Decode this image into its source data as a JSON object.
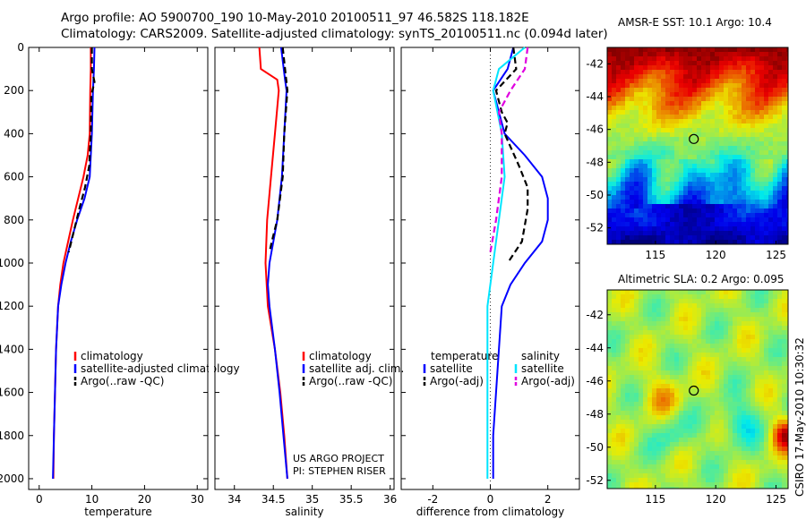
{
  "header": {
    "line1": "Argo profile: AO 5900700_190 10-May-2010 20100511_97 46.582S 118.182E",
    "line2": "Climatology: CARS2009. Satellite-adjusted climatology: synTS_20100511.nc (0.094d later)"
  },
  "credit": {
    "line1": "US ARGO PROJECT",
    "line2": "PI: STEPHEN RISER"
  },
  "stamp": "CSIRO 17-May-2010 10:30:32",
  "colors": {
    "climatology": "#ff0000",
    "satellite": "#0000ff",
    "argo": "#000000",
    "salinity_satellite": "#00e5ff",
    "salinity_argo": "#e000e0"
  },
  "chart_data": [
    {
      "type": "line",
      "xlabel": "temperature",
      "ylabel": "",
      "xlim": [
        -2,
        32
      ],
      "ylim": [
        2050,
        0
      ],
      "xticks": [
        "0",
        "10",
        "20",
        "30"
      ],
      "xtick_values": [
        0,
        10,
        20,
        30
      ],
      "yticks": [
        "0",
        "200",
        "400",
        "600",
        "800",
        "1000",
        "1200",
        "1400",
        "1600",
        "1800",
        "2000"
      ],
      "ytick_values": [
        0,
        200,
        400,
        600,
        800,
        1000,
        1200,
        1400,
        1600,
        1800,
        2000
      ],
      "legend": {
        "placement": "middle-left",
        "entries": [
          "climatology",
          "satellite-adjusted climatology",
          "Argo(..raw -QC)"
        ]
      },
      "series": [
        {
          "name": "climatology",
          "color": "#ff0000",
          "style": "solid",
          "points": [
            [
              9.8,
              0
            ],
            [
              9.8,
              100
            ],
            [
              9.7,
              200
            ],
            [
              9.6,
              400
            ],
            [
              9.2,
              500
            ],
            [
              8.4,
              600
            ],
            [
              7.4,
              700
            ],
            [
              6.4,
              800
            ],
            [
              5.5,
              900
            ],
            [
              4.6,
              1000
            ],
            [
              4.0,
              1100
            ],
            [
              3.6,
              1200
            ],
            [
              3.2,
              1400
            ],
            [
              3.0,
              1600
            ],
            [
              2.8,
              1800
            ],
            [
              2.7,
              2000
            ]
          ]
        },
        {
          "name": "satellite-adjusted climatology",
          "color": "#0000ff",
          "style": "solid",
          "points": [
            [
              10.5,
              0
            ],
            [
              10.4,
              100
            ],
            [
              10.2,
              200
            ],
            [
              10.0,
              400
            ],
            [
              9.8,
              500
            ],
            [
              9.6,
              600
            ],
            [
              8.6,
              700
            ],
            [
              7.2,
              800
            ],
            [
              6.0,
              900
            ],
            [
              5.0,
              1000
            ],
            [
              4.2,
              1100
            ],
            [
              3.6,
              1200
            ],
            [
              3.2,
              1400
            ],
            [
              3.0,
              1600
            ],
            [
              2.8,
              1800
            ],
            [
              2.6,
              2000
            ]
          ]
        },
        {
          "name": "Argo(..raw -QC)",
          "color": "#000000",
          "style": "dashed",
          "points": [
            [
              10.0,
              0
            ],
            [
              10.0,
              100
            ],
            [
              10.5,
              160
            ],
            [
              9.9,
              220
            ],
            [
              9.8,
              400
            ],
            [
              9.5,
              550
            ],
            [
              8.7,
              650
            ],
            [
              7.6,
              750
            ],
            [
              6.6,
              850
            ],
            [
              5.6,
              950
            ]
          ]
        }
      ]
    },
    {
      "type": "line",
      "xlabel": "salinity",
      "ylabel": "",
      "xlim": [
        33.75,
        36.05
      ],
      "ylim": [
        2050,
        0
      ],
      "xticks": [
        "34",
        "34.5",
        "35",
        "35.5",
        "36"
      ],
      "xtick_values": [
        34,
        34.5,
        35,
        35.5,
        36
      ],
      "legend": {
        "placement": "middle-left",
        "entries": [
          "climatology",
          "satellite adj. clim.",
          "Argo(..raw -QC)"
        ]
      },
      "series": [
        {
          "name": "climatology",
          "color": "#ff0000",
          "style": "solid",
          "points": [
            [
              34.32,
              0
            ],
            [
              34.34,
              100
            ],
            [
              34.55,
              150
            ],
            [
              34.57,
              200
            ],
            [
              34.52,
              400
            ],
            [
              34.47,
              600
            ],
            [
              34.42,
              800
            ],
            [
              34.4,
              1000
            ],
            [
              34.43,
              1200
            ],
            [
              34.52,
              1400
            ],
            [
              34.59,
              1600
            ],
            [
              34.64,
              1800
            ],
            [
              34.68,
              2000
            ]
          ]
        },
        {
          "name": "satellite adj. clim.",
          "color": "#0000ff",
          "style": "solid",
          "points": [
            [
              34.6,
              0
            ],
            [
              34.65,
              150
            ],
            [
              34.67,
              200
            ],
            [
              34.64,
              400
            ],
            [
              34.61,
              600
            ],
            [
              34.55,
              800
            ],
            [
              34.45,
              1000
            ],
            [
              34.43,
              1100
            ],
            [
              34.45,
              1200
            ],
            [
              34.52,
              1400
            ],
            [
              34.58,
              1600
            ],
            [
              34.63,
              1800
            ],
            [
              34.68,
              2000
            ]
          ]
        },
        {
          "name": "Argo(..raw -QC)",
          "color": "#000000",
          "style": "dashed",
          "points": [
            [
              34.62,
              0
            ],
            [
              34.65,
              100
            ],
            [
              34.68,
              200
            ],
            [
              34.64,
              400
            ],
            [
              34.62,
              600
            ],
            [
              34.55,
              800
            ],
            [
              34.48,
              900
            ],
            [
              34.45,
              950
            ]
          ]
        }
      ]
    },
    {
      "type": "line",
      "xlabel": "difference from climatology",
      "ylabel": "",
      "xlim": [
        -3.1,
        3.1
      ],
      "ylim": [
        2050,
        0
      ],
      "xticks": [
        "-2",
        "0",
        "2"
      ],
      "xtick_values": [
        -2,
        0,
        2
      ],
      "legend": {
        "placement": "middle",
        "headers": [
          "temperature",
          "salinity"
        ],
        "entries": [
          "satellite",
          "Argo(-adj)",
          "satellite",
          "Argo(-adj)"
        ]
      },
      "series": [
        {
          "name": "temperature satellite",
          "color": "#0000ff",
          "style": "solid",
          "points": [
            [
              0.8,
              0
            ],
            [
              0.6,
              100
            ],
            [
              0.1,
              200
            ],
            [
              0.3,
              300
            ],
            [
              0.5,
              400
            ],
            [
              1.2,
              500
            ],
            [
              1.8,
              600
            ],
            [
              2.0,
              700
            ],
            [
              2.0,
              800
            ],
            [
              1.8,
              900
            ],
            [
              1.2,
              1000
            ],
            [
              0.7,
              1100
            ],
            [
              0.4,
              1200
            ],
            [
              0.3,
              1400
            ],
            [
              0.2,
              1600
            ],
            [
              0.1,
              1800
            ],
            [
              0.1,
              2000
            ]
          ]
        },
        {
          "name": "temperature Argo(-adj)",
          "color": "#000000",
          "style": "dashed",
          "points": [
            [
              0.8,
              0
            ],
            [
              0.9,
              100
            ],
            [
              0.2,
              200
            ],
            [
              0.4,
              300
            ],
            [
              0.6,
              350
            ],
            [
              0.5,
              400
            ],
            [
              1.0,
              550
            ],
            [
              1.3,
              650
            ],
            [
              1.3,
              750
            ],
            [
              1.1,
              900
            ],
            [
              0.6,
              1000
            ]
          ]
        },
        {
          "name": "salinity satellite",
          "color": "#00e5ff",
          "style": "solid",
          "points": [
            [
              1.2,
              0
            ],
            [
              0.3,
              100
            ],
            [
              0.1,
              200
            ],
            [
              0.4,
              400
            ],
            [
              0.5,
              600
            ],
            [
              0.3,
              800
            ],
            [
              0.1,
              1000
            ],
            [
              -0.1,
              1200
            ],
            [
              -0.1,
              1400
            ],
            [
              -0.1,
              1600
            ],
            [
              -0.1,
              1800
            ],
            [
              -0.1,
              2000
            ]
          ]
        },
        {
          "name": "salinity Argo(-adj)",
          "color": "#e000e0",
          "style": "dashed",
          "points": [
            [
              1.3,
              0
            ],
            [
              1.2,
              100
            ],
            [
              0.7,
              200
            ],
            [
              0.3,
              300
            ],
            [
              0.4,
              400
            ],
            [
              0.4,
              600
            ],
            [
              0.2,
              800
            ],
            [
              0.0,
              950
            ]
          ]
        }
      ]
    },
    {
      "type": "heatmap",
      "title": "AMSR-E SST: 10.1 Argo: 10.4",
      "xlim": [
        111,
        126
      ],
      "ylim": [
        -53,
        -41
      ],
      "xticks": [
        "115",
        "120",
        "125"
      ],
      "xtick_values": [
        115,
        120,
        125
      ],
      "yticks": [
        "-42",
        "-44",
        "-46",
        "-48",
        "-50",
        "-52"
      ],
      "ytick_values": [
        -42,
        -44,
        -46,
        -48,
        -50,
        -52
      ],
      "marker": {
        "lon": 118.182,
        "lat": -46.582
      }
    },
    {
      "type": "heatmap",
      "title": "Altimetric SLA: 0.2 Argo: 0.095",
      "xlim": [
        111,
        126
      ],
      "ylim": [
        -52.5,
        -40.5
      ],
      "xticks": [
        "115",
        "120",
        "125"
      ],
      "xtick_values": [
        115,
        120,
        125
      ],
      "yticks": [
        "-42",
        "-44",
        "-46",
        "-48",
        "-50",
        "-52"
      ],
      "ytick_values": [
        -42,
        -44,
        -46,
        -48,
        -50,
        -52
      ],
      "marker": {
        "lon": 118.182,
        "lat": -46.582
      }
    }
  ]
}
